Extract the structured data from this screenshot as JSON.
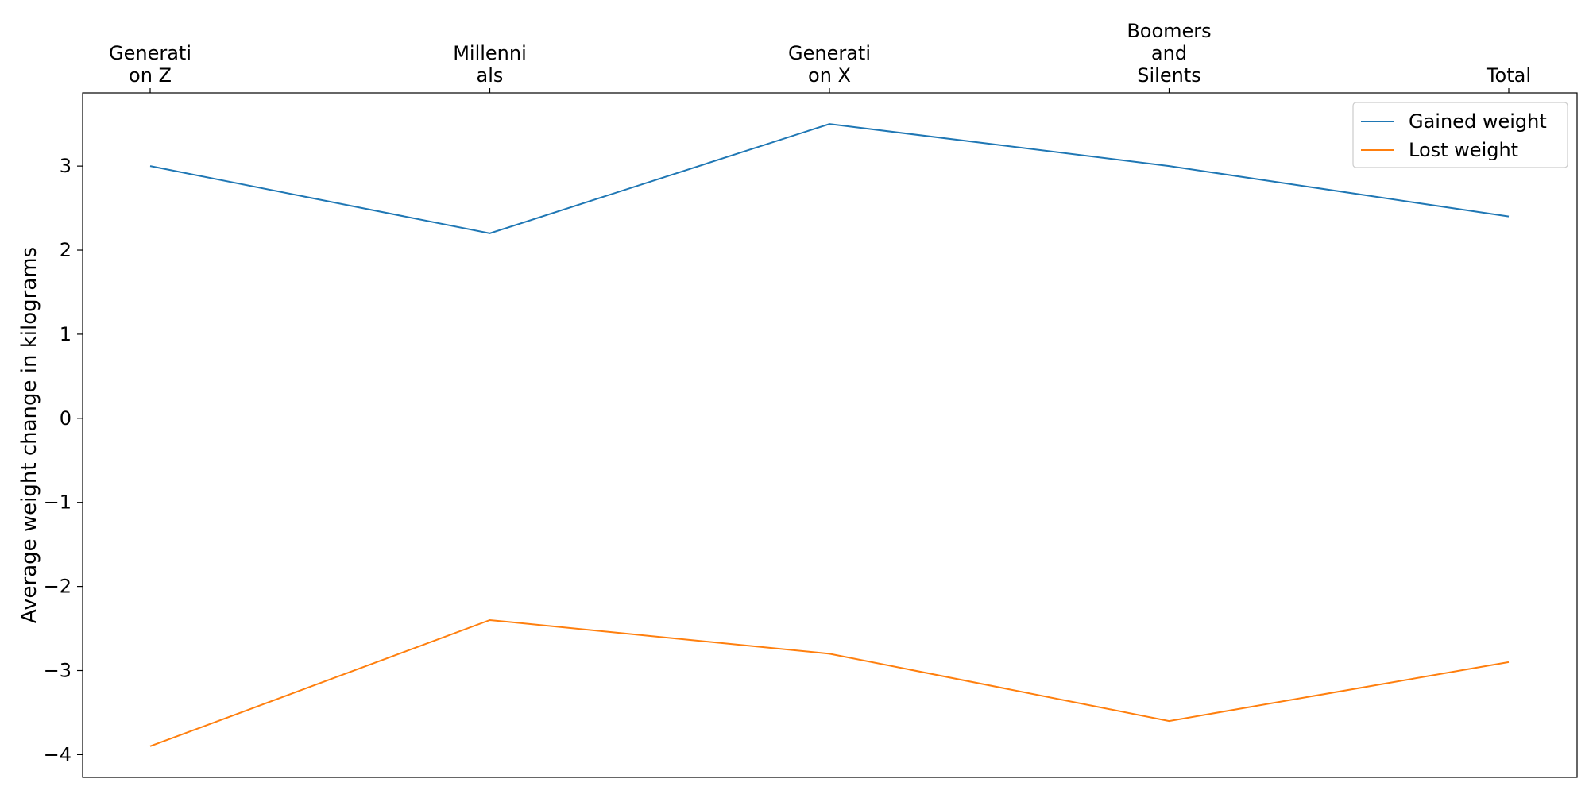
{
  "chart_data": {
    "type": "line",
    "title": "",
    "xlabel": "",
    "ylabel": "Average weight change in kilograms",
    "categories": [
      "Generation Z",
      "Millennials",
      "Generation X",
      "Boomers and Silents",
      "Total"
    ],
    "category_tick_labels": [
      [
        "Generati",
        "on Z"
      ],
      [
        "Millenni",
        "als"
      ],
      [
        "Generati",
        "on X"
      ],
      [
        "Boomers",
        "and",
        "Silents"
      ],
      [
        "Total"
      ]
    ],
    "x_axis_position": "top",
    "ylim": [
      -4.27,
      3.87
    ],
    "yticks": [
      -4,
      -3,
      -2,
      -1,
      0,
      1,
      2,
      3
    ],
    "ytick_labels": [
      "−4",
      "−3",
      "−2",
      "−1",
      "0",
      "1",
      "2",
      "3"
    ],
    "grid": false,
    "legend_position": "top-right",
    "series": [
      {
        "name": "Gained weight",
        "color": "#1f77b4",
        "values": [
          3.0,
          2.2,
          3.5,
          3.0,
          2.4
        ]
      },
      {
        "name": "Lost weight",
        "color": "#ff7f0e",
        "values": [
          -3.9,
          -2.4,
          -2.8,
          -3.6,
          -2.9
        ]
      }
    ]
  }
}
